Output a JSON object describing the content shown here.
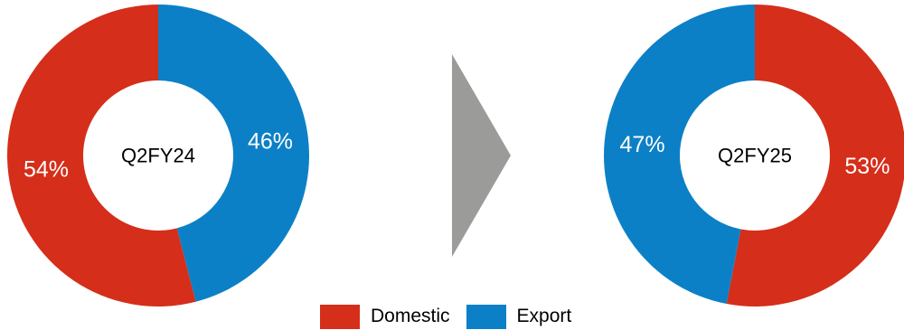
{
  "chart_data": [
    {
      "type": "pie",
      "title": "Q2FY24",
      "categories": [
        "Domestic",
        "Export"
      ],
      "values": [
        54,
        46
      ],
      "labels": [
        "54%",
        "46%"
      ]
    },
    {
      "type": "pie",
      "title": "Q2FY25",
      "categories": [
        "Domestic",
        "Export"
      ],
      "values": [
        53,
        47
      ],
      "labels": [
        "53%",
        "47%"
      ]
    }
  ],
  "colors": {
    "Domestic": "#d52e1a",
    "Export": "#0c80c6",
    "arrow": "#9b9c99"
  },
  "legend": [
    {
      "name": "Domestic",
      "color": "#d52e1a"
    },
    {
      "name": "Export",
      "color": "#0c80c6"
    }
  ],
  "icons": {
    "arrow": "right-triangle-arrow-icon"
  }
}
